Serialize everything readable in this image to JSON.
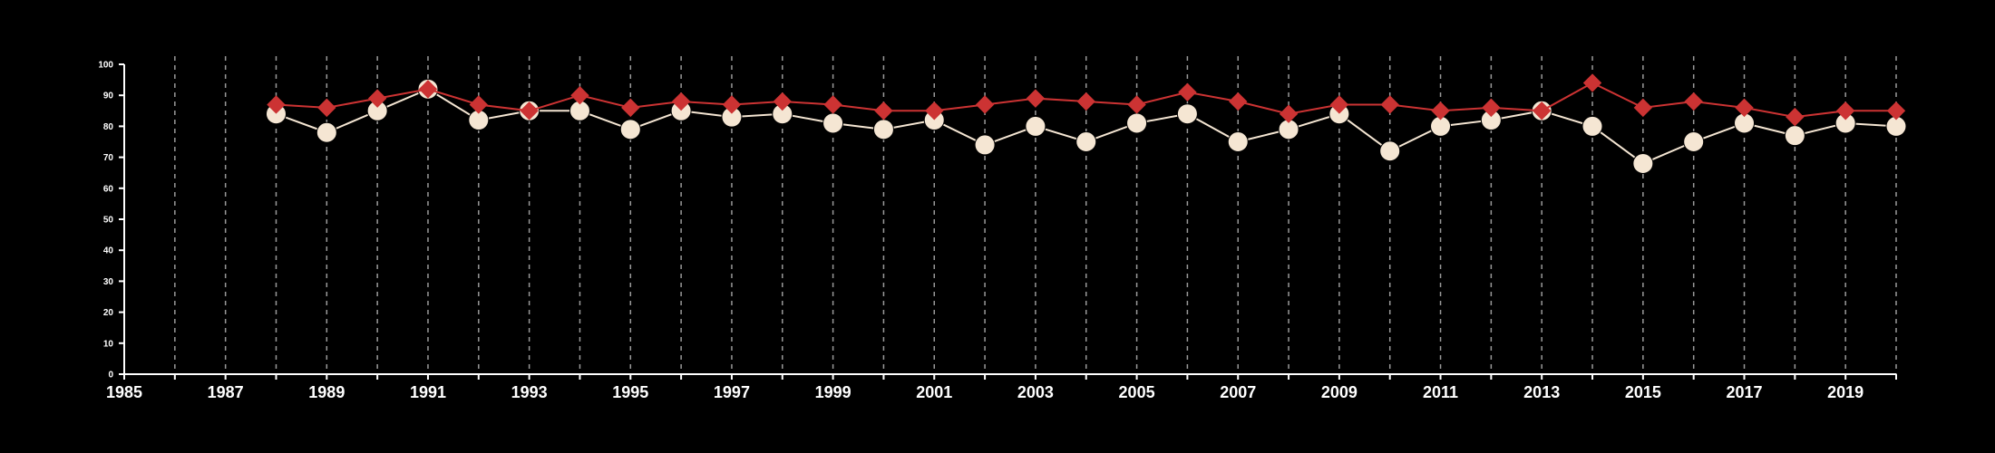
{
  "chart_data": {
    "type": "line",
    "x": [
      1988,
      1989,
      1990,
      1991,
      1992,
      1993,
      1994,
      1995,
      1996,
      1997,
      1998,
      1999,
      2000,
      2001,
      2002,
      2003,
      2004,
      2005,
      2006,
      2007,
      2008,
      2009,
      2010,
      2011,
      2012,
      2013,
      2014,
      2015,
      2016,
      2017,
      2018,
      2019,
      2020
    ],
    "series": [
      {
        "marker": "diamond",
        "color": "#cc3333",
        "values": [
          87,
          86,
          89,
          92,
          87,
          85,
          90,
          86,
          88,
          87,
          88,
          87,
          85,
          85,
          87,
          89,
          88,
          87,
          91,
          88,
          84,
          87,
          87,
          85,
          86,
          85,
          94,
          86,
          88,
          86,
          83,
          85,
          85
        ]
      },
      {
        "marker": "circle",
        "color": "#f5e6d3",
        "values": [
          84,
          78,
          85,
          92,
          82,
          85,
          85,
          79,
          85,
          83,
          84,
          81,
          79,
          82,
          74,
          80,
          75,
          81,
          84,
          75,
          79,
          84,
          72,
          80,
          82,
          85,
          80,
          68,
          75,
          81,
          77,
          81,
          80
        ]
      }
    ],
    "xlim": [
      1985,
      2020
    ],
    "ylim": [
      0,
      100
    ],
    "x_ticks": [
      "1985",
      "1987",
      "1989",
      "1991",
      "1993",
      "1995",
      "1997",
      "1999",
      "2001",
      "2003",
      "2005",
      "2007",
      "2009",
      "2011",
      "2013",
      "2015",
      "2017",
      "2019"
    ],
    "y_ticks": [
      "0",
      "10",
      "20",
      "30",
      "40",
      "50",
      "60",
      "70",
      "80",
      "90",
      "100"
    ],
    "grid": "vertical dashed",
    "background": "#000000",
    "axis_color": "#ffffff"
  }
}
